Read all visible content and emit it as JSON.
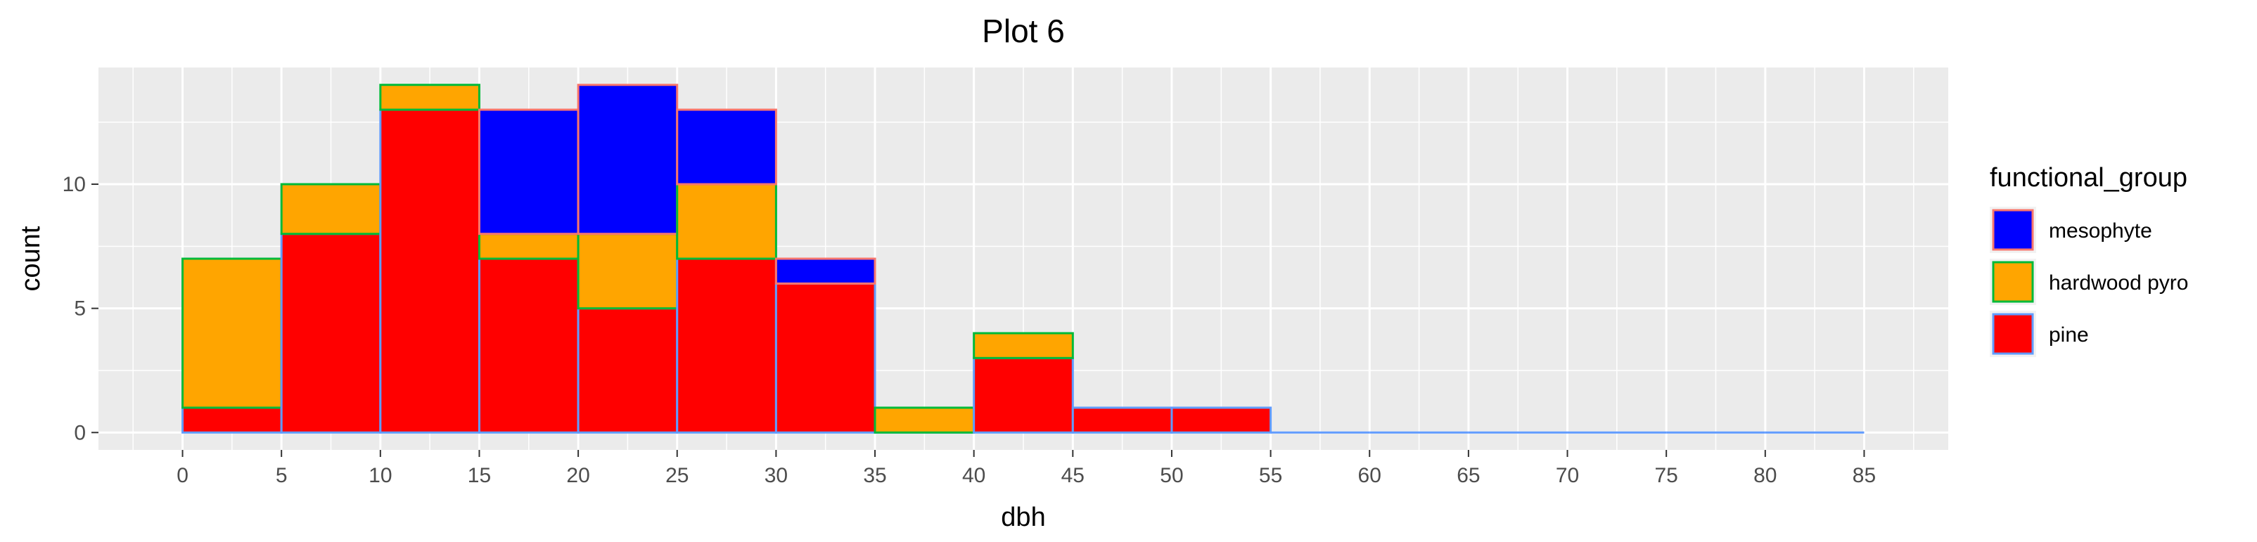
{
  "chart_data": {
    "type": "bar",
    "subtype": "stacked-histogram",
    "title": "Plot 6",
    "xlabel": "dbh",
    "ylabel": "count",
    "bin_width": 5,
    "bins_start": [
      0,
      5,
      10,
      15,
      20,
      25,
      30,
      35,
      40,
      45,
      50,
      55,
      60,
      65,
      70,
      75,
      80
    ],
    "x_ticks": [
      "0",
      "5",
      "10",
      "15",
      "20",
      "25",
      "30",
      "35",
      "40",
      "45",
      "50",
      "55",
      "60",
      "65",
      "70",
      "75",
      "80",
      "85"
    ],
    "y_ticks": [
      "0",
      "5",
      "10"
    ],
    "xlim": [
      -4.25,
      89.25
    ],
    "ylim": [
      -0.7,
      14.7
    ],
    "grid": true,
    "legend_position": "right",
    "legend_title": "functional_group",
    "series": [
      {
        "name": "mesophyte",
        "fill": "#0000FF",
        "outline": "#F8766D",
        "values": [
          0,
          0,
          0,
          5,
          6,
          3,
          1,
          0,
          0,
          0,
          0,
          0,
          0,
          0,
          0,
          0,
          0
        ]
      },
      {
        "name": "hardwood pyro",
        "fill": "#FFA500",
        "outline": "#00BA38",
        "values": [
          6,
          2,
          1,
          1,
          3,
          3,
          0,
          1,
          1,
          0,
          0,
          0,
          0,
          0,
          0,
          0,
          0
        ]
      },
      {
        "name": "pine",
        "fill": "#FF0000",
        "outline": "#619CFF",
        "values": [
          1,
          8,
          13,
          7,
          5,
          7,
          6,
          0,
          3,
          1,
          1,
          0,
          0,
          0,
          0,
          0,
          0
        ]
      }
    ]
  }
}
